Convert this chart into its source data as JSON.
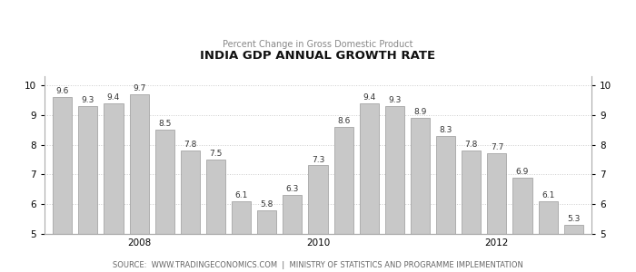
{
  "title": "INDIA GDP ANNUAL GROWTH RATE",
  "subtitle": "Percent Change in Gross Domestic Product",
  "source_text": "SOURCE:  WWW.TRADINGECONOMICS.COM  |  MINISTRY OF STATISTICS AND PROGRAMME IMPLEMENTATION",
  "values": [
    9.6,
    9.3,
    9.4,
    9.7,
    8.5,
    7.8,
    7.5,
    6.1,
    5.8,
    6.3,
    7.3,
    8.6,
    9.4,
    9.3,
    8.9,
    8.3,
    7.8,
    7.7,
    6.9,
    6.1,
    5.3
  ],
  "x_tick_positions": [
    3,
    10,
    17
  ],
  "x_tick_labels": [
    "2008",
    "2010",
    "2012"
  ],
  "ylim": [
    5,
    10
  ],
  "yticks": [
    5,
    6,
    7,
    8,
    9,
    10
  ],
  "bar_color": "#c8c8c8",
  "bar_edge_color": "#999999",
  "grid_color": "#cccccc",
  "title_color": "#111111",
  "subtitle_color": "#888888",
  "source_color": "#666666",
  "title_fontsize": 9.5,
  "subtitle_fontsize": 7,
  "source_fontsize": 6,
  "value_fontsize": 6.5,
  "tick_fontsize": 7.5,
  "background_color": "#ffffff"
}
